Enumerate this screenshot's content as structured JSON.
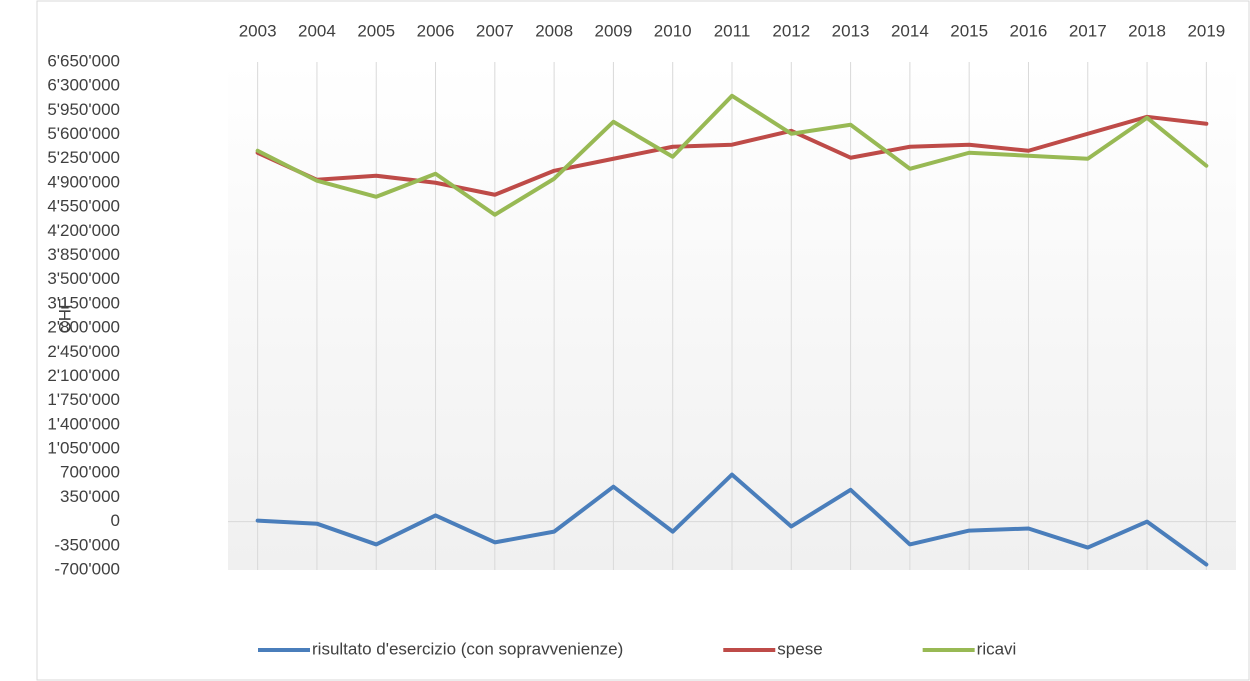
{
  "chart_data": {
    "type": "line",
    "y_label": "CHF",
    "categories": [
      "2003",
      "2004",
      "2005",
      "2006",
      "2007",
      "2008",
      "2009",
      "2010",
      "2011",
      "2012",
      "2013",
      "2014",
      "2015",
      "2016",
      "2017",
      "2018",
      "2019"
    ],
    "series": [
      {
        "name": "risultato d'esercizio (con sopravvenienze)",
        "color": "#4a7ebb",
        "values": [
          15000,
          -30000,
          -330000,
          90000,
          -300000,
          -145000,
          505000,
          -145000,
          680000,
          -70000,
          460000,
          -330000,
          -130000,
          -100000,
          -375000,
          0,
          -620000
        ]
      },
      {
        "name": "spese",
        "color": "#be4b48",
        "values": [
          5337000,
          4946000,
          5004000,
          4903000,
          4729000,
          5076000,
          5250000,
          5424000,
          5453000,
          5655000,
          5265000,
          5424000,
          5453000,
          5366000,
          5612000,
          5857000,
          5756000
        ]
      },
      {
        "name": "ricavi",
        "color": "#98b954",
        "values": [
          5366000,
          4932000,
          4700000,
          5033000,
          4440000,
          4961000,
          5785000,
          5279000,
          6161000,
          5612000,
          5742000,
          5105000,
          5337000,
          5294000,
          5250000,
          5843000,
          5149000
        ]
      }
    ],
    "ylim": [
      -700000,
      6650000
    ],
    "yticks": [
      {
        "value": -700000,
        "label": "-700'000"
      },
      {
        "value": -350000,
        "label": "-350'000"
      },
      0,
      {
        "value": 350000,
        "label": "350'000"
      },
      {
        "value": 700000,
        "label": "700'000"
      },
      {
        "value": 1050000,
        "label": "1'050'000"
      },
      {
        "value": 1400000,
        "label": "1'400'000"
      },
      {
        "value": 1750000,
        "label": "1'750'000"
      },
      {
        "value": 2100000,
        "label": "2'100'000"
      },
      {
        "value": 2450000,
        "label": "2'450'000"
      },
      {
        "value": 2800000,
        "label": "2'800'000"
      },
      {
        "value": 3150000,
        "label": "3'150'000"
      },
      {
        "value": 3500000,
        "label": "3'500'000"
      },
      {
        "value": 3850000,
        "label": "3'850'000"
      },
      {
        "value": 4200000,
        "label": "4'200'000"
      },
      {
        "value": 4550000,
        "label": "4'550'000"
      },
      {
        "value": 4900000,
        "label": "4'900'000"
      },
      {
        "value": 5250000,
        "label": "5'250'000"
      },
      {
        "value": 5600000,
        "label": "5'600'000"
      },
      {
        "value": 5950000,
        "label": "5'950'000"
      },
      {
        "value": 6300000,
        "label": "6'300'000"
      },
      {
        "value": 6650000,
        "label": "6'650'000"
      }
    ],
    "grid": true,
    "legend": "bottom"
  }
}
